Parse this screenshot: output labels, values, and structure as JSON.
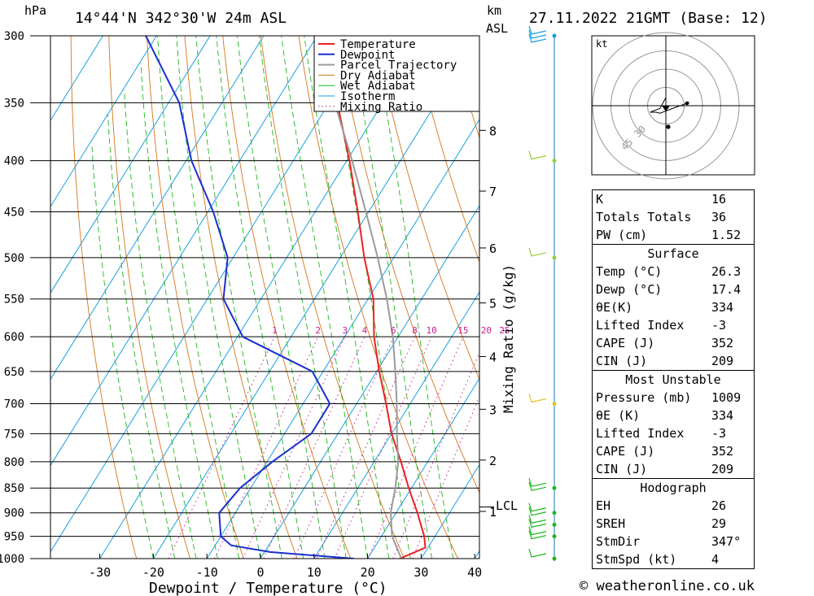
{
  "header": {
    "hpa_label": "hPa",
    "location": "14°44'N  342°30'W  24m  ASL",
    "km_label": "km",
    "asl_label": "ASL",
    "date": "27.11.2022  21GMT  (Base: 12)"
  },
  "colors": {
    "temperature": "#ee2222",
    "dewpoint": "#1a2fd0",
    "parcel": "#9a9a9a",
    "dry_adiabat": "#d4761a",
    "wet_adiabat": "#1fb81f",
    "isotherm": "#19a1e0",
    "mixing_ratio": "#cc1f8a"
  },
  "chart_data": {
    "type": "skew-t",
    "xlabel": "Dewpoint / Temperature (°C)",
    "ylabel_right": "Mixing Ratio (g/kg)",
    "pressure_levels": [
      300,
      350,
      400,
      450,
      500,
      550,
      600,
      650,
      700,
      750,
      800,
      850,
      900,
      950,
      1000
    ],
    "x_ticks": [
      -30,
      -20,
      -10,
      0,
      10,
      20,
      30,
      40
    ],
    "km_ticks": [
      {
        "km": 1,
        "p": 897
      },
      {
        "km": 2,
        "p": 797
      },
      {
        "km": 3,
        "p": 709
      },
      {
        "km": 4,
        "p": 628
      },
      {
        "km": 5,
        "p": 555
      },
      {
        "km": 6,
        "p": 489
      },
      {
        "km": 7,
        "p": 429
      },
      {
        "km": 8,
        "p": 373
      }
    ],
    "lcl": {
      "label": "LCL",
      "p": 888
    },
    "mixing_ratio_labels": [
      "1",
      "2",
      "3",
      "4",
      "6",
      "8",
      "10",
      "15",
      "20",
      "25"
    ],
    "mixing_ratio_values": [
      1,
      2,
      3,
      4,
      6,
      8,
      10,
      15,
      20,
      25
    ],
    "legend": [
      "Temperature",
      "Dewpoint",
      "Parcel Trajectory",
      "Dry Adiabat",
      "Wet Adiabat",
      "Isotherm",
      "Mixing Ratio"
    ],
    "series": [
      {
        "name": "Temperature",
        "points": [
          [
            1000,
            26
          ],
          [
            975,
            29.5
          ],
          [
            950,
            28
          ],
          [
            900,
            24
          ],
          [
            850,
            19.5
          ],
          [
            800,
            15
          ],
          [
            750,
            10
          ],
          [
            700,
            5.5
          ],
          [
            650,
            0.5
          ],
          [
            600,
            -4.5
          ],
          [
            550,
            -9
          ],
          [
            500,
            -15.5
          ],
          [
            450,
            -22
          ],
          [
            400,
            -29.5
          ],
          [
            350,
            -38.5
          ],
          [
            300,
            -48
          ]
        ]
      },
      {
        "name": "Dewpoint",
        "points": [
          [
            1000,
            17.4
          ],
          [
            985,
            1
          ],
          [
            970,
            -7
          ],
          [
            950,
            -10
          ],
          [
            900,
            -13
          ],
          [
            850,
            -12
          ],
          [
            800,
            -9
          ],
          [
            750,
            -5
          ],
          [
            700,
            -5
          ],
          [
            650,
            -12
          ],
          [
            600,
            -29
          ],
          [
            550,
            -37
          ],
          [
            500,
            -41
          ],
          [
            450,
            -49
          ],
          [
            400,
            -59
          ],
          [
            350,
            -68
          ],
          [
            300,
            -82
          ]
        ]
      },
      {
        "name": "Parcel Trajectory",
        "points": [
          [
            1000,
            26.3
          ],
          [
            950,
            22
          ],
          [
            900,
            19
          ],
          [
            850,
            17
          ],
          [
            800,
            14.5
          ],
          [
            750,
            11
          ],
          [
            700,
            7.5
          ],
          [
            650,
            3.5
          ],
          [
            600,
            -1
          ],
          [
            550,
            -6.5
          ],
          [
            500,
            -13
          ],
          [
            450,
            -20.5
          ],
          [
            400,
            -29
          ],
          [
            350,
            -39
          ],
          [
            300,
            -50.5
          ]
        ]
      }
    ]
  },
  "hodograph": {
    "unit_label": "kt",
    "ring_labels": [
      "30",
      "45"
    ],
    "trace": [
      [
        0,
        0
      ],
      [
        -3,
        11
      ],
      [
        -8,
        15
      ],
      [
        -5,
        15
      ],
      [
        -3,
        16
      ],
      [
        5,
        10
      ],
      [
        12,
        5
      ]
    ],
    "storm": [
      1,
      -7
    ]
  },
  "wind_profile": {
    "levels": [
      {
        "p": 300,
        "color": "#19a1e0",
        "barbs": 3
      },
      {
        "p": 400,
        "color": "#9acd32",
        "barbs": 1
      },
      {
        "p": 500,
        "color": "#9acd32",
        "barbs": 1
      },
      {
        "p": 700,
        "color": "#e6c41e",
        "barbs": 1
      },
      {
        "p": 850,
        "color": "#1fb81f",
        "barbs": 2
      },
      {
        "p": 900,
        "color": "#1fb81f",
        "barbs": 2
      },
      {
        "p": 925,
        "color": "#1fb81f",
        "barbs": 2
      },
      {
        "p": 950,
        "color": "#1fb81f",
        "barbs": 2
      },
      {
        "p": 1000,
        "color": "#1fb81f",
        "barbs": 1
      }
    ]
  },
  "indices": {
    "k_label": "K",
    "k": "16",
    "tt_label": "Totals Totals",
    "tt": "36",
    "pw_label": "PW (cm)",
    "pw": "1.52",
    "surface_title": "Surface",
    "s_temp_label": "Temp (°C)",
    "s_temp": "26.3",
    "s_dewp_label": "Dewp (°C)",
    "s_dewp": "17.4",
    "s_theta_label": "θE(K)",
    "s_theta": "334",
    "s_li_label": "Lifted Index",
    "s_li": "-3",
    "s_cape_label": "CAPE (J)",
    "s_cape": "352",
    "s_cin_label": "CIN (J)",
    "s_cin": "209",
    "mu_title": "Most Unstable",
    "mu_pressure_label": "Pressure (mb)",
    "mu_pressure": "1009",
    "mu_theta_label": "θE (K)",
    "mu_theta": "334",
    "mu_li_label": "Lifted Index",
    "mu_li": "-3",
    "mu_cape_label": "CAPE (J)",
    "mu_cape": "352",
    "mu_cin_label": "CIN (J)",
    "mu_cin": "209",
    "hodo_title": "Hodograph",
    "eh_label": "EH",
    "eh": "26",
    "sreh_label": "SREH",
    "sreh": "29",
    "stmdir_label": "StmDir",
    "stmdir": "347°",
    "stmspd_label": "StmSpd (kt)",
    "stmspd": "4"
  },
  "copyright": "© weatheronline.co.uk"
}
